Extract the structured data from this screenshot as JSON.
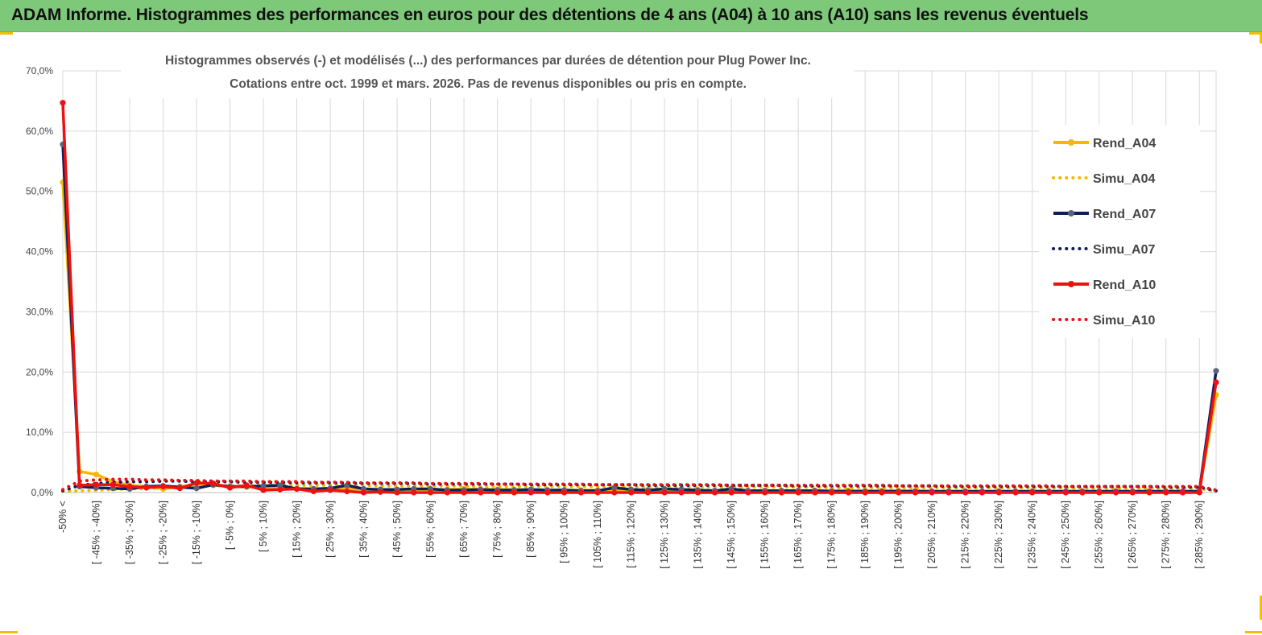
{
  "banner": {
    "title": "ADAM Informe. Histogrammes des performances en euros pour des détentions de 4 ans (A04) à 10 ans (A10) sans les revenus éventuels"
  },
  "colors": {
    "banner_bg": "#7ec87a",
    "A04": "#f5b800",
    "A07": "#0f1f5c",
    "A07_marker": "#5a6478",
    "A10": "#ee1111"
  },
  "chart_data": {
    "type": "line",
    "title_lines": [
      "Histogrammes observés (-) et modélisés (...) des performances par durées de détention pour Plug Power Inc.",
      "Cotations entre oct. 1999 et mars. 2026. Pas de revenus disponibles ou pris en compte."
    ],
    "ylim": [
      0,
      70
    ],
    "yticks": [
      "0,0%",
      "10,0%",
      "20,0%",
      "30,0%",
      "40,0%",
      "50,0%",
      "60,0%",
      "70,0%"
    ],
    "grid": true,
    "legend_position": "right",
    "categories": [
      "-50% <",
      "[ -50% ; -45%]",
      "[ -45% ; -40%]",
      "[ -40% ; -35%]",
      "[ -35% ; -30%]",
      "[ -30% ; -25%]",
      "[ -25% ; -20%]",
      "[ -20% ; -15%]",
      "[ -15% ; -10%]",
      "[ -10% ; -5%]",
      "[ -5% ; 0%]",
      "[ 0% ; 5%]",
      "[ 5% ; 10%]",
      "[ 10% ; 15%]",
      "[ 15% ; 20%]",
      "[ 20% ; 25%]",
      "[ 25% ; 30%]",
      "[ 30% ; 35%]",
      "[ 35% ; 40%]",
      "[ 40% ; 45%]",
      "[ 45% ; 50%]",
      "[ 50% ; 55%]",
      "[ 55% ; 60%]",
      "[ 60% ; 65%]",
      "[ 65% ; 70%]",
      "[ 70% ; 75%]",
      "[ 75% ; 80%]",
      "[ 80% ; 85%]",
      "[ 85% ; 90%]",
      "[ 90% ; 95%]",
      "[ 95% ; 100%]",
      "[ 100% ; 105%]",
      "[ 105% ; 110%]",
      "[ 110% ; 115%]",
      "[ 115% ; 120%]",
      "[ 120% ; 125%]",
      "[ 125% ; 130%]",
      "[ 130% ; 135%]",
      "[ 135% ; 140%]",
      "[ 140% ; 145%]",
      "[ 145% ; 150%]",
      "[ 150% ; 155%]",
      "[ 155% ; 160%]",
      "[ 160% ; 165%]",
      "[ 165% ; 170%]",
      "[ 170% ; 175%]",
      "[ 175% ; 180%]",
      "[ 180% ; 185%]",
      "[ 185% ; 190%]",
      "[ 190% ; 195%]",
      "[ 195% ; 200%]",
      "[ 200% ; 205%]",
      "[ 205% ; 210%]",
      "[ 210% ; 215%]",
      "[ 215% ; 220%]",
      "[ 220% ; 225%]",
      "[ 225% ; 230%]",
      "[ 230% ; 235%]",
      "[ 235% ; 240%]",
      "[ 240% ; 245%]",
      "[ 245% ; 250%]",
      "[ 250% ; 255%]",
      "[ 255% ; 260%]",
      "[ 260% ; 265%]",
      "[ 265% ; 270%]",
      "[ 270% ; 275%]",
      "[ 275% ; 280%]",
      "[ 280% ; 285%]",
      "[ 285% ; 290%]",
      "290% >"
    ],
    "shown_tick_labels": [
      "-50% <",
      "[ -45% ; -40%]",
      "[ -35% ; -30%]",
      "[ -25% ; -20%]",
      "[ -15% ; -10%]",
      "[ -5% ; 0%]",
      "[ 5% ; 10%]",
      "[ 15% ; 20%]",
      "[ 25% ; 30%]",
      "[ 35% ; 40%]",
      "[ 45% ; 50%]",
      "[ 55% ; 60%]",
      "[ 65% ; 70%]",
      "[ 75% ; 80%]",
      "[ 85% ; 90%]",
      "[ 95% ; 100%]",
      "[ 105% ; 110%]",
      "[ 115% ; 120%]",
      "[ 125% ; 130%]",
      "[ 135% ; 140%]",
      "[ 145% ; 150%]",
      "[ 155% ; 160%]",
      "[ 165% ; 170%]",
      "[ 175% ; 180%]",
      "[ 185% ; 190%]",
      "[ 195% ; 200%]",
      "[ 205% ; 210%]",
      "[ 215% ; 220%]",
      "[ 225% ; 230%]",
      "[ 235% ; 240%]",
      "[ 245% ; 250%]",
      "[ 255% ; 260%]",
      "[ 265% ; 270%]",
      "[ 275% ; 280%]",
      "[ 285% ; 290%]"
    ],
    "series": [
      {
        "name": "Rend_A04",
        "style": "solid",
        "color_key": "A04",
        "values": [
          51.5,
          3.5,
          3.0,
          1.8,
          1.2,
          1.0,
          0.6,
          1.0,
          1.3,
          1.2,
          1.0,
          0.9,
          0.8,
          0.7,
          0.7,
          0.6,
          0.6,
          0.6,
          0.5,
          0.5,
          0.5,
          0.5,
          0.5,
          0.5,
          0.6,
          0.5,
          0.5,
          0.5,
          0.4,
          0.4,
          0.4,
          0.4,
          0.4,
          0.4,
          0.4,
          0.3,
          0.3,
          0.3,
          0.3,
          0.3,
          0.3,
          0.3,
          0.3,
          0.3,
          0.3,
          0.3,
          0.3,
          0.3,
          0.3,
          0.3,
          0.3,
          0.3,
          0.2,
          0.2,
          0.2,
          0.2,
          0.2,
          0.2,
          0.2,
          0.2,
          0.2,
          0.2,
          0.2,
          0.2,
          0.2,
          0.2,
          0.2,
          0.2,
          0.2,
          16.2
        ]
      },
      {
        "name": "Simu_A04",
        "style": "dotted",
        "color_key": "A04",
        "values": [
          0.2,
          0.3,
          0.4,
          0.5,
          0.6,
          0.7,
          0.8,
          0.9,
          1.0,
          1.1,
          1.1,
          1.2,
          1.2,
          1.2,
          1.2,
          1.2,
          1.2,
          1.2,
          1.2,
          1.1,
          1.1,
          1.1,
          1.1,
          1.1,
          1.1,
          1.0,
          1.0,
          1.0,
          1.0,
          1.0,
          1.0,
          1.0,
          1.0,
          1.0,
          0.9,
          0.9,
          0.9,
          0.9,
          0.9,
          0.9,
          0.9,
          0.9,
          0.9,
          0.9,
          0.9,
          0.9,
          0.8,
          0.8,
          0.8,
          0.8,
          0.8,
          0.8,
          0.8,
          0.8,
          0.8,
          0.8,
          0.8,
          0.8,
          0.8,
          0.8,
          0.8,
          0.7,
          0.7,
          0.7,
          0.7,
          0.7,
          0.7,
          0.7,
          0.7,
          0.2
        ]
      },
      {
        "name": "Rend_A07",
        "style": "solid",
        "color_key": "A07",
        "values": [
          57.8,
          1.0,
          0.8,
          0.7,
          0.6,
          1.0,
          1.1,
          0.9,
          0.7,
          1.3,
          1.0,
          1.0,
          1.1,
          1.2,
          0.6,
          0.6,
          0.7,
          1.2,
          0.6,
          0.5,
          0.5,
          0.6,
          0.6,
          0.4,
          0.4,
          0.5,
          0.4,
          0.4,
          0.5,
          0.4,
          0.4,
          0.3,
          0.3,
          0.8,
          0.5,
          0.4,
          0.6,
          0.5,
          0.4,
          0.3,
          0.6,
          0.3,
          0.3,
          0.3,
          0.3,
          0.3,
          0.2,
          0.2,
          0.2,
          0.2,
          0.2,
          0.2,
          0.2,
          0.2,
          0.2,
          0.2,
          0.2,
          0.2,
          0.2,
          0.2,
          0.2,
          0.2,
          0.2,
          0.2,
          0.2,
          0.2,
          0.2,
          0.2,
          0.2,
          20.2
        ]
      },
      {
        "name": "Simu_A07",
        "style": "dotted",
        "color_key": "A07",
        "values": [
          0.3,
          1.2,
          1.5,
          1.7,
          1.8,
          1.8,
          1.9,
          1.9,
          1.8,
          1.8,
          1.8,
          1.7,
          1.7,
          1.7,
          1.6,
          1.6,
          1.6,
          1.6,
          1.5,
          1.5,
          1.5,
          1.5,
          1.4,
          1.4,
          1.4,
          1.4,
          1.4,
          1.4,
          1.3,
          1.3,
          1.3,
          1.3,
          1.3,
          1.3,
          1.3,
          1.2,
          1.2,
          1.2,
          1.2,
          1.2,
          1.2,
          1.2,
          1.2,
          1.2,
          1.1,
          1.1,
          1.1,
          1.1,
          1.1,
          1.1,
          1.1,
          1.1,
          1.1,
          1.0,
          1.0,
          1.0,
          1.0,
          1.0,
          1.0,
          1.0,
          1.0,
          1.0,
          1.0,
          1.0,
          1.0,
          1.0,
          0.9,
          0.9,
          0.9,
          0.3
        ]
      },
      {
        "name": "Rend_A10",
        "style": "solid",
        "color_key": "A10",
        "values": [
          64.7,
          1.2,
          1.3,
          1.3,
          1.0,
          0.8,
          1.0,
          0.7,
          1.6,
          1.5,
          0.8,
          1.2,
          0.4,
          0.5,
          0.6,
          0.2,
          0.4,
          0.2,
          0.0,
          0.1,
          0.0,
          0.0,
          0.0,
          0.0,
          0.0,
          0.0,
          0.0,
          0.0,
          0.0,
          0.0,
          0.0,
          0.0,
          0.0,
          0.0,
          0.0,
          0.0,
          0.0,
          0.0,
          0.0,
          0.0,
          0.0,
          0.0,
          0.0,
          0.0,
          0.0,
          0.0,
          0.0,
          0.0,
          0.0,
          0.0,
          0.0,
          0.0,
          0.0,
          0.0,
          0.0,
          0.0,
          0.0,
          0.0,
          0.0,
          0.0,
          0.0,
          0.0,
          0.0,
          0.0,
          0.0,
          0.0,
          0.0,
          0.0,
          0.0,
          18.3
        ]
      },
      {
        "name": "Simu_A10",
        "style": "dotted",
        "color_key": "A10",
        "values": [
          0.5,
          1.9,
          2.1,
          2.2,
          2.2,
          2.1,
          2.1,
          2.0,
          2.0,
          1.9,
          1.9,
          1.9,
          1.8,
          1.8,
          1.8,
          1.7,
          1.7,
          1.7,
          1.6,
          1.6,
          1.6,
          1.6,
          1.5,
          1.5,
          1.5,
          1.5,
          1.4,
          1.4,
          1.4,
          1.4,
          1.4,
          1.4,
          1.3,
          1.3,
          1.3,
          1.3,
          1.3,
          1.3,
          1.3,
          1.3,
          1.2,
          1.2,
          1.2,
          1.2,
          1.2,
          1.2,
          1.2,
          1.2,
          1.2,
          1.2,
          1.1,
          1.1,
          1.1,
          1.1,
          1.1,
          1.1,
          1.1,
          1.1,
          1.1,
          1.1,
          1.0,
          1.0,
          1.0,
          1.0,
          1.0,
          1.0,
          1.0,
          1.0,
          1.0,
          0.4
        ]
      }
    ]
  }
}
